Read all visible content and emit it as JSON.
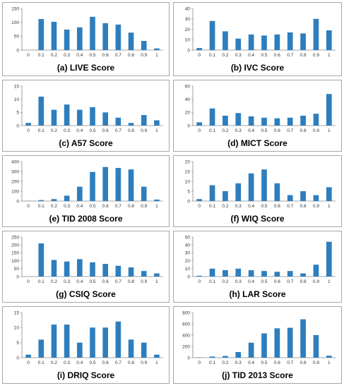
{
  "chart_data": [
    {
      "type": "bar",
      "title": "(a) LIVE Score",
      "categories": [
        "0",
        "0.1",
        "0.2",
        "0.3",
        "0.4",
        "0.5",
        "0.6",
        "0.7",
        "0.8",
        "0.9",
        "1"
      ],
      "values": [
        0,
        112,
        102,
        74,
        82,
        120,
        97,
        92,
        63,
        33,
        6
      ],
      "ylim": [
        0,
        150
      ],
      "yticks": [
        0,
        50,
        100,
        150
      ],
      "color": "#2e7ebd"
    },
    {
      "type": "bar",
      "title": "(b) IVC Score",
      "categories": [
        "0",
        "0.1",
        "0.2",
        "0.3",
        "0.4",
        "0.5",
        "0.6",
        "0.7",
        "0.8",
        "0.9",
        "1"
      ],
      "values": [
        2,
        28,
        18,
        11,
        15,
        14,
        15,
        17,
        16,
        30,
        19
      ],
      "ylim": [
        0,
        40
      ],
      "yticks": [
        0,
        10,
        20,
        30,
        40
      ],
      "color": "#2e7ebd"
    },
    {
      "type": "bar",
      "title": "(c) A57 Score",
      "categories": [
        "0",
        "0.1",
        "0.2",
        "0.3",
        "0.4",
        "0.5",
        "0.6",
        "0.7",
        "0.8",
        "0.9",
        "1"
      ],
      "values": [
        1,
        11,
        6,
        8,
        6,
        7,
        5,
        3,
        1,
        4,
        2
      ],
      "ylim": [
        0,
        15
      ],
      "yticks": [
        0,
        5,
        10,
        15
      ],
      "color": "#2e7ebd"
    },
    {
      "type": "bar",
      "title": "(d) MICT Score",
      "categories": [
        "0",
        "0.1",
        "0.2",
        "0.3",
        "0.4",
        "0.5",
        "0.6",
        "0.7",
        "0.8",
        "0.9",
        "1"
      ],
      "values": [
        5,
        26,
        15,
        19,
        14,
        12,
        11,
        12,
        15,
        18,
        48
      ],
      "ylim": [
        0,
        60
      ],
      "yticks": [
        0,
        20,
        40,
        60
      ],
      "color": "#2e7ebd"
    },
    {
      "type": "bar",
      "title": "(e) TID 2008 Score",
      "categories": [
        "0",
        "0.1",
        "0.2",
        "0.3",
        "0.4",
        "0.5",
        "0.6",
        "0.7",
        "0.8",
        "0.9",
        "1"
      ],
      "values": [
        2,
        10,
        20,
        55,
        145,
        295,
        345,
        335,
        320,
        145,
        15
      ],
      "ylim": [
        0,
        400
      ],
      "yticks": [
        0,
        100,
        200,
        300,
        400
      ],
      "color": "#2e7ebd"
    },
    {
      "type": "bar",
      "title": "(f) WIQ Score",
      "categories": [
        "0",
        "0.1",
        "0.2",
        "0.3",
        "0.4",
        "0.5",
        "0.6",
        "0.7",
        "0.8",
        "0.9",
        "1"
      ],
      "values": [
        1,
        8,
        5,
        9,
        14,
        16,
        9,
        3,
        5,
        3,
        7
      ],
      "ylim": [
        0,
        20
      ],
      "yticks": [
        0,
        5,
        10,
        15,
        20
      ],
      "color": "#2e7ebd"
    },
    {
      "type": "bar",
      "title": "(g) CSIQ Score",
      "categories": [
        "0",
        "0.1",
        "0.2",
        "0.3",
        "0.4",
        "0.5",
        "0.6",
        "0.7",
        "0.8",
        "0.9",
        "1"
      ],
      "values": [
        0,
        210,
        105,
        95,
        110,
        90,
        80,
        68,
        58,
        35,
        20
      ],
      "ylim": [
        0,
        250
      ],
      "yticks": [
        0,
        50,
        100,
        150,
        200,
        250
      ],
      "color": "#2e7ebd"
    },
    {
      "type": "bar",
      "title": "(h) LAR Score",
      "categories": [
        "0",
        "0.1",
        "0.2",
        "0.3",
        "0.4",
        "0.5",
        "0.6",
        "0.7",
        "0.8",
        "0.9",
        "1"
      ],
      "values": [
        1,
        10,
        8,
        10,
        8,
        7,
        6,
        7,
        4,
        15,
        44
      ],
      "ylim": [
        0,
        50
      ],
      "yticks": [
        0,
        10,
        20,
        30,
        40,
        50
      ],
      "color": "#2e7ebd"
    },
    {
      "type": "bar",
      "title": "(i) DRIQ Score",
      "categories": [
        "0",
        "0.1",
        "0.2",
        "0.3",
        "0.4",
        "0.5",
        "0.6",
        "0.7",
        "0.8",
        "0.9",
        "1"
      ],
      "values": [
        1,
        6,
        11,
        11,
        5,
        10,
        10,
        12,
        6,
        5,
        1
      ],
      "ylim": [
        0,
        15
      ],
      "yticks": [
        0,
        5,
        10,
        15
      ],
      "color": "#2e7ebd"
    },
    {
      "type": "bar",
      "title": "(j) TID 2013 Score",
      "categories": [
        "0",
        "0.1",
        "0.2",
        "0.3",
        "0.4",
        "0.5",
        "0.6",
        "0.7",
        "0.8",
        "0.9",
        "1"
      ],
      "values": [
        5,
        20,
        30,
        100,
        265,
        430,
        520,
        530,
        680,
        400,
        35
      ],
      "ylim": [
        0,
        800
      ],
      "yticks": [
        0,
        200,
        400,
        600,
        800
      ],
      "color": "#2e7ebd"
    }
  ]
}
